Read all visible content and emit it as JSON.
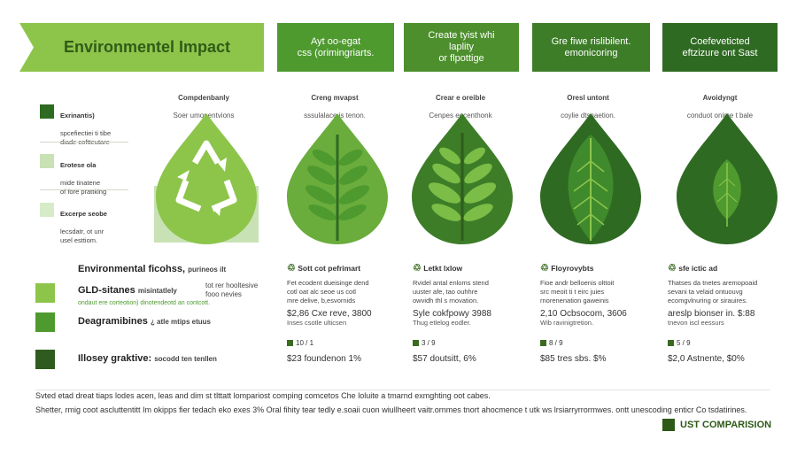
{
  "title": "Environmentel Impact",
  "headers": [
    {
      "text": "Ayt oo-egat\ncss (orimingriarts.",
      "color": "#4e9a2f"
    },
    {
      "text": "Create tyist whi laplity\nor flpottige",
      "color": "#4c8f2c"
    },
    {
      "text": "Gre fiwe rislibilent.\nemonicoring",
      "color": "#3d7d28"
    },
    {
      "text": "Coefeveticted\neftzizure ont Sast",
      "color": "#2f6a22"
    }
  ],
  "subheads": [
    {
      "title": "Compdenbanly",
      "text": "Soer umonentvions"
    },
    {
      "title": "Creng mvapst",
      "text": "sssulalace is tenon."
    },
    {
      "title": "Crear e oreible",
      "text": "Cenpes eocenthonk"
    },
    {
      "title": "Oresl untont",
      "text": "coylie dtsnaetion."
    },
    {
      "title": "Avoidyngt",
      "text": "conduot onime t bale"
    }
  ],
  "legend": [
    {
      "title": "Exrinantis)",
      "text": "spcefiectiei ti tibe\ndiade coftteutare",
      "color": "#2f6a22"
    },
    {
      "title": "Erotese ola",
      "text": "mide tinatene\nof fore prattking",
      "color": "#c9e2b5"
    },
    {
      "title": "Excerpe seobe",
      "text": "lecsdatr, ot unr\nusel esttiom.",
      "color": "#d6ebc7"
    }
  ],
  "row_headers": {
    "main": "Environmental ficohss,",
    "main_sub": "purineos ilt",
    "rows": [
      {
        "label": "GLD-sitanes",
        "sub": "misintatlely",
        "note": "tot rer hooltesive\nfooo nevies",
        "color": "#8dc54b",
        "extra": "ondaut ere corteotion) dinotendeotd an contcott."
      },
      {
        "label": "Deagramibines",
        "sub": "¿ atle mtips etuus",
        "note": "",
        "color": "#4e9a2f",
        "extra": ""
      },
      {
        "label": "Illosey graktive:",
        "sub": "socodd ten tenllen",
        "note": "",
        "color": "#2f5c1e",
        "extra": ""
      }
    ]
  },
  "columns": [
    {
      "head": "Sott cot pefrimart",
      "text": "Fet ecodent dueisinge dend\ncotl oat alc seoe us cotl\nmre delive, b,esvornids",
      "price": "$2,86 Cxe reve,  3800",
      "price_sub": "Inses csotle ulticsen",
      "count": "10 / 1",
      "foot": "$23 foundenon  1%"
    },
    {
      "head": "Letkt lxlow",
      "text": "Rvidel antal enloms stend\nuuster afe, tao ouhhre\nowvidh thl s rnovation.",
      "price": "Syle cokfpowy  3988",
      "price_sub": "Thug etlelog eodler.",
      "count": "3 / 9",
      "foot": "$57 doutsitt,  6%"
    },
    {
      "head": "Floyrovybts",
      "text": "Fioe andr belloenis olttoit\nsrc meoit ti t eirc juies\nrnorenenation gaweinis",
      "price": "2,10 Ocbsocom,  3606",
      "price_sub": "Wib ravinigtretion.",
      "count": "8 / 9",
      "foot": "$85 tres sbs.  $%"
    },
    {
      "head": "sfe ictic ad",
      "text": "Thatses da tnetes aremopoaid\nsevani ta velaid ontuouvg\necomgvlnuring or sirauires.",
      "price": "areslp bionser in.  $:88",
      "price_sub": "tnevon iscl eessurs",
      "count": "5 / 9",
      "foot": "$2,0 Astnente,  $0%"
    }
  ],
  "notes": [
    "Svted etad dreat tiaps lodes acen, leas and dim st tlttatt lompariost comping comcetos Che loluite a tmarnd exmghting oot cabes.",
    "Shetter, rmig coot ascluttentitt Im okipps fier tedach eko exes 3% Oral fihity tear tedly e.soaii cuon wiullheert vaitr.ornmes tnort ahocmence t utk ws lrsiarryrrormwes. ontt unescoding enticr Co tsdatirines."
  ],
  "badge": "UST COMPARISION"
}
